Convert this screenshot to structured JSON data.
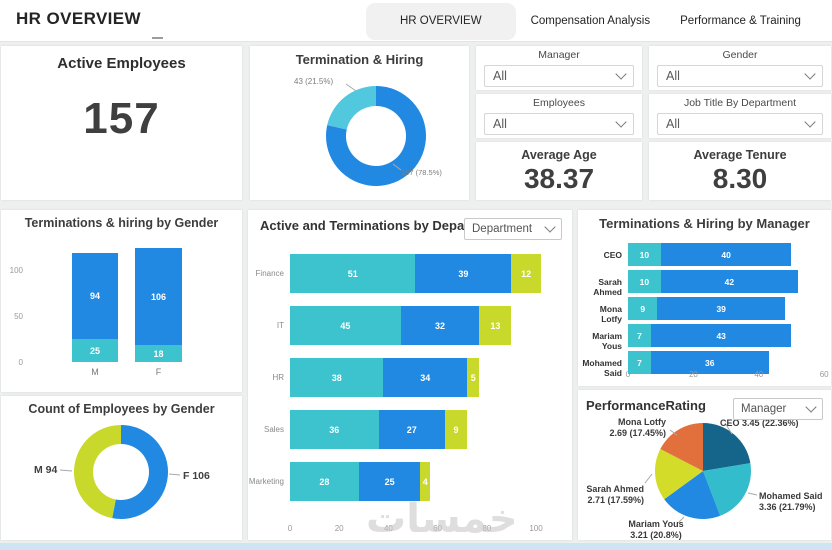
{
  "header": {
    "title": "HR OVERVIEW",
    "tabs": [
      {
        "label": "HR OVERVIEW",
        "active": true
      },
      {
        "label": "Compensation Analysis",
        "active": false
      },
      {
        "label": "Performance & Training",
        "active": false
      }
    ]
  },
  "filters": [
    {
      "label": "Manager",
      "value": "All"
    },
    {
      "label": "Gender",
      "value": "All"
    },
    {
      "label": "Employees",
      "value": "All"
    },
    {
      "label": "Job Title By Department",
      "value": "All"
    }
  ],
  "kpis": [
    {
      "title": "Active Employees",
      "value": "157"
    },
    {
      "title": "Average Age",
      "value": "38.37"
    },
    {
      "title": "Average Tenure",
      "value": "8.30"
    }
  ],
  "watermark": "خمسات",
  "colors": {
    "blue": "#2289e3",
    "teal": "#3cc3ce",
    "lightTealSlice": "#52c8de",
    "yellowGreen": "#c9d92b",
    "darkTeal": "#15658a",
    "cyan": "#33bccb",
    "orange": "#e2703d"
  },
  "chart_data": [
    {
      "id": "termination_hiring",
      "type": "donut",
      "title": "Termination & Hiring",
      "slices": [
        {
          "name": "active",
          "value": 157,
          "label": "157 (78.5%)",
          "color": "#2289e3"
        },
        {
          "name": "terminated",
          "value": 43,
          "label": "43 (21.5%)",
          "color": "#52c8de"
        }
      ]
    },
    {
      "id": "gender_term_hiring",
      "type": "stacked-column",
      "title": "Terminations & hiring by Gender",
      "categories": [
        "M",
        "F"
      ],
      "series": [
        {
          "name": "terminations",
          "color": "#3cc3ce",
          "values": [
            25,
            18
          ]
        },
        {
          "name": "hiring",
          "color": "#2289e3",
          "values": [
            94,
            106
          ]
        }
      ],
      "yticks": [
        0,
        50,
        100
      ],
      "ymax": 130
    },
    {
      "id": "dept_active_term",
      "type": "stacked-bar",
      "title": "Active and Terminations by Department",
      "dropdown": "Department",
      "categories": [
        "Finance",
        "IT",
        "HR",
        "Sales",
        "Marketing"
      ],
      "series": [
        {
          "name": "active",
          "color": "#3cc3ce",
          "values": [
            51,
            45,
            38,
            36,
            28
          ]
        },
        {
          "name": "terminations",
          "color": "#2289e3",
          "values": [
            39,
            32,
            34,
            27,
            25
          ]
        },
        {
          "name": "other",
          "color": "#c9d92b",
          "values": [
            12,
            13,
            5,
            9,
            4
          ]
        }
      ],
      "xticks": [
        0,
        20,
        40,
        60,
        80,
        100
      ],
      "xmax": 110
    },
    {
      "id": "manager_term_hiring",
      "type": "stacked-bar",
      "title": "Terminations & Hiring by Manager",
      "categories": [
        "CEO",
        "Sarah Ahmed",
        "Mona Lotfy",
        "Mariam Yous",
        "Mohamed Said"
      ],
      "series": [
        {
          "name": "terminations",
          "color": "#3cc3ce",
          "values": [
            10,
            10,
            9,
            7,
            7
          ]
        },
        {
          "name": "hiring",
          "color": "#2289e3",
          "values": [
            40,
            42,
            39,
            43,
            36
          ]
        }
      ],
      "xticks": [
        0,
        20,
        40,
        60
      ],
      "xmax": 62
    },
    {
      "id": "gender_count",
      "type": "donut",
      "title": "Count of Employees by Gender",
      "slices": [
        {
          "name": "F",
          "value": 106,
          "label": "F 106",
          "color": "#2289e3"
        },
        {
          "name": "M",
          "value": 94,
          "label": "M 94",
          "color": "#c9d92b"
        }
      ]
    },
    {
      "id": "performance_rating",
      "type": "pie",
      "title": "PerformanceRating",
      "dropdown": "Manager",
      "slices": [
        {
          "name": "CEO",
          "value": 3.45,
          "pct": 22.36,
          "lines": [
            "CEO 3.45 (22.36%)"
          ],
          "color": "#15658a"
        },
        {
          "name": "Mohamed Said",
          "value": 3.36,
          "pct": 21.79,
          "lines": [
            "Mohamed Said",
            "3.36 (21.79%)"
          ],
          "color": "#33bccb"
        },
        {
          "name": "Mariam Yous",
          "value": 3.21,
          "pct": 20.8,
          "lines": [
            "Mariam Yous",
            "3.21 (20.8%)"
          ],
          "color": "#2289e3"
        },
        {
          "name": "Sarah Ahmed",
          "value": 2.71,
          "pct": 17.59,
          "lines": [
            "Sarah Ahmed",
            "2.71 (17.59%)"
          ],
          "color": "#d3dc28"
        },
        {
          "name": "Mona Lotfy",
          "value": 2.69,
          "pct": 17.45,
          "lines": [
            "Mona Lotfy",
            "2.69 (17.45%)"
          ],
          "color": "#e2703d"
        }
      ]
    }
  ]
}
